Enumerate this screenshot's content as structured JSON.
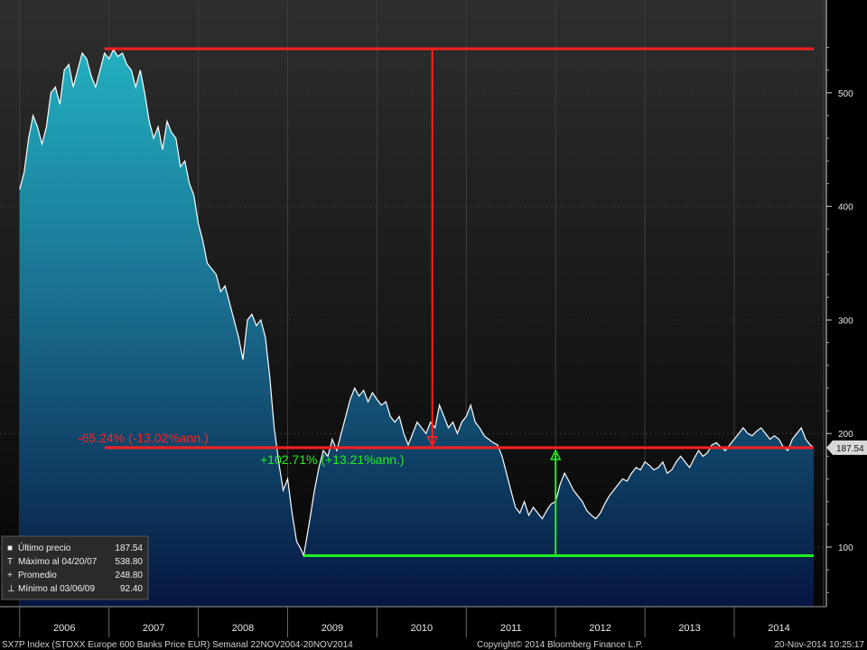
{
  "chart_data": {
    "type": "area",
    "ylim": [
      40,
      560
    ],
    "yticks": [
      100,
      200,
      300,
      400,
      500
    ],
    "year_labels": [
      "2006",
      "2007",
      "2008",
      "2009",
      "2010",
      "2011",
      "2012",
      "2013",
      "2014"
    ],
    "year_starts": [
      "2006",
      "2007",
      "2008",
      "2009",
      "2010",
      "2011",
      "2012",
      "2013",
      "2014",
      "2015"
    ],
    "last_value_label": "187.54",
    "series": [
      {
        "values_note": "weekly closes approximated",
        "points": [
          [
            "2006.00",
            415
          ],
          [
            "2006.05",
            430
          ],
          [
            "2006.10",
            460
          ],
          [
            "2006.15",
            480
          ],
          [
            "2006.20",
            470
          ],
          [
            "2006.25",
            455
          ],
          [
            "2006.30",
            470
          ],
          [
            "2006.35",
            500
          ],
          [
            "2006.40",
            505
          ],
          [
            "2006.45",
            490
          ],
          [
            "2006.50",
            520
          ],
          [
            "2006.55",
            525
          ],
          [
            "2006.60",
            505
          ],
          [
            "2006.65",
            520
          ],
          [
            "2006.70",
            535
          ],
          [
            "2006.75",
            530
          ],
          [
            "2006.80",
            515
          ],
          [
            "2006.85",
            505
          ],
          [
            "2006.90",
            520
          ],
          [
            "2006.95",
            535
          ],
          [
            "2007.00",
            530
          ],
          [
            "2007.05",
            538
          ],
          [
            "2007.10",
            532
          ],
          [
            "2007.15",
            535
          ],
          [
            "2007.20",
            525
          ],
          [
            "2007.25",
            520
          ],
          [
            "2007.30",
            505
          ],
          [
            "2007.35",
            520
          ],
          [
            "2007.40",
            500
          ],
          [
            "2007.45",
            475
          ],
          [
            "2007.50",
            460
          ],
          [
            "2007.55",
            470
          ],
          [
            "2007.60",
            450
          ],
          [
            "2007.65",
            475
          ],
          [
            "2007.70",
            465
          ],
          [
            "2007.75",
            460
          ],
          [
            "2007.80",
            435
          ],
          [
            "2007.85",
            440
          ],
          [
            "2007.90",
            420
          ],
          [
            "2007.95",
            410
          ],
          [
            "2008.00",
            385
          ],
          [
            "2008.05",
            370
          ],
          [
            "2008.10",
            350
          ],
          [
            "2008.15",
            345
          ],
          [
            "2008.20",
            340
          ],
          [
            "2008.25",
            325
          ],
          [
            "2008.30",
            330
          ],
          [
            "2008.35",
            315
          ],
          [
            "2008.40",
            300
          ],
          [
            "2008.45",
            285
          ],
          [
            "2008.50",
            265
          ],
          [
            "2008.55",
            300
          ],
          [
            "2008.60",
            305
          ],
          [
            "2008.65",
            295
          ],
          [
            "2008.70",
            300
          ],
          [
            "2008.75",
            285
          ],
          [
            "2008.80",
            250
          ],
          [
            "2008.85",
            205
          ],
          [
            "2008.90",
            175
          ],
          [
            "2008.95",
            150
          ],
          [
            "2009.00",
            160
          ],
          [
            "2009.05",
            130
          ],
          [
            "2009.10",
            105
          ],
          [
            "2009.15",
            98
          ],
          [
            "2009.18",
            92.4
          ],
          [
            "2009.25",
            125
          ],
          [
            "2009.30",
            150
          ],
          [
            "2009.35",
            170
          ],
          [
            "2009.40",
            185
          ],
          [
            "2009.45",
            180
          ],
          [
            "2009.50",
            195
          ],
          [
            "2009.55",
            185
          ],
          [
            "2009.60",
            200
          ],
          [
            "2009.65",
            215
          ],
          [
            "2009.70",
            230
          ],
          [
            "2009.75",
            240
          ],
          [
            "2009.80",
            233
          ],
          [
            "2009.85",
            238
          ],
          [
            "2009.90",
            228
          ],
          [
            "2009.95",
            236
          ],
          [
            "2010.00",
            230
          ],
          [
            "2010.05",
            225
          ],
          [
            "2010.10",
            228
          ],
          [
            "2010.15",
            215
          ],
          [
            "2010.20",
            210
          ],
          [
            "2010.25",
            215
          ],
          [
            "2010.30",
            200
          ],
          [
            "2010.35",
            190
          ],
          [
            "2010.40",
            200
          ],
          [
            "2010.45",
            210
          ],
          [
            "2010.50",
            205
          ],
          [
            "2010.55",
            200
          ],
          [
            "2010.60",
            210
          ],
          [
            "2010.65",
            205
          ],
          [
            "2010.70",
            225
          ],
          [
            "2010.75",
            215
          ],
          [
            "2010.80",
            205
          ],
          [
            "2010.85",
            210
          ],
          [
            "2010.90",
            200
          ],
          [
            "2010.95",
            210
          ],
          [
            "2011.00",
            215
          ],
          [
            "2011.05",
            225
          ],
          [
            "2011.10",
            210
          ],
          [
            "2011.15",
            205
          ],
          [
            "2011.20",
            198
          ],
          [
            "2011.25",
            195
          ],
          [
            "2011.30",
            192
          ],
          [
            "2011.35",
            190
          ],
          [
            "2011.40",
            180
          ],
          [
            "2011.45",
            165
          ],
          [
            "2011.50",
            150
          ],
          [
            "2011.55",
            135
          ],
          [
            "2011.60",
            130
          ],
          [
            "2011.65",
            140
          ],
          [
            "2011.70",
            128
          ],
          [
            "2011.75",
            135
          ],
          [
            "2011.80",
            130
          ],
          [
            "2011.85",
            125
          ],
          [
            "2011.90",
            132
          ],
          [
            "2011.95",
            138
          ],
          [
            "2012.00",
            140
          ],
          [
            "2012.05",
            155
          ],
          [
            "2012.10",
            165
          ],
          [
            "2012.15",
            158
          ],
          [
            "2012.20",
            150
          ],
          [
            "2012.25",
            145
          ],
          [
            "2012.30",
            140
          ],
          [
            "2012.35",
            132
          ],
          [
            "2012.40",
            128
          ],
          [
            "2012.45",
            125
          ],
          [
            "2012.50",
            130
          ],
          [
            "2012.55",
            138
          ],
          [
            "2012.60",
            145
          ],
          [
            "2012.65",
            150
          ],
          [
            "2012.70",
            155
          ],
          [
            "2012.75",
            160
          ],
          [
            "2012.80",
            158
          ],
          [
            "2012.85",
            165
          ],
          [
            "2012.90",
            170
          ],
          [
            "2012.95",
            168
          ],
          [
            "2013.00",
            175
          ],
          [
            "2013.05",
            172
          ],
          [
            "2013.10",
            168
          ],
          [
            "2013.15",
            170
          ],
          [
            "2013.20",
            175
          ],
          [
            "2013.25",
            165
          ],
          [
            "2013.30",
            168
          ],
          [
            "2013.35",
            175
          ],
          [
            "2013.40",
            180
          ],
          [
            "2013.45",
            175
          ],
          [
            "2013.50",
            170
          ],
          [
            "2013.55",
            178
          ],
          [
            "2013.60",
            185
          ],
          [
            "2013.65",
            180
          ],
          [
            "2013.70",
            183
          ],
          [
            "2013.75",
            190
          ],
          [
            "2013.80",
            192
          ],
          [
            "2013.85",
            188
          ],
          [
            "2013.90",
            185
          ],
          [
            "2013.95",
            190
          ],
          [
            "2014.00",
            195
          ],
          [
            "2014.05",
            200
          ],
          [
            "2014.10",
            205
          ],
          [
            "2014.15",
            200
          ],
          [
            "2014.20",
            198
          ],
          [
            "2014.25",
            202
          ],
          [
            "2014.30",
            205
          ],
          [
            "2014.35",
            200
          ],
          [
            "2014.40",
            195
          ],
          [
            "2014.45",
            198
          ],
          [
            "2014.50",
            195
          ],
          [
            "2014.55",
            188
          ],
          [
            "2014.60",
            185
          ],
          [
            "2014.65",
            195
          ],
          [
            "2014.70",
            200
          ],
          [
            "2014.75",
            205
          ],
          [
            "2014.80",
            195
          ],
          [
            "2014.85",
            190
          ],
          [
            "2014.89",
            187.54
          ]
        ]
      }
    ],
    "annotations": {
      "top_line": {
        "value": 538.8,
        "x_start": "2006.95",
        "x_end": "2015.00"
      },
      "mid_line": {
        "value": 187.54,
        "x_start": "2006.95",
        "x_end": "2015.00"
      },
      "bottom_line": {
        "value": 92.4,
        "x_start": "2009.18",
        "x_end": "2015.00"
      },
      "down_arrow_x": "2010.62",
      "up_arrow_x": "2012.00",
      "down_label": "-65.24% (-13.02%ann.)",
      "up_label": "+102.71% (+13.21%ann.)"
    }
  },
  "legend": {
    "items": [
      {
        "symbol": "square",
        "label": "Último precio",
        "value": "187.54"
      },
      {
        "symbol": "T",
        "label": "Máximo al 04/20/07",
        "value": "538.80"
      },
      {
        "symbol": "+",
        "label": "Promedio",
        "value": "248.80"
      },
      {
        "symbol": "⊥",
        "label": "Mínimo al 03/06/09",
        "value": "92.40"
      }
    ]
  },
  "footer": {
    "left": "SX7P Index  (STOXX Europe 600 Banks Price EUR)  Semanal 22NOV2004-20NOV2014",
    "center": "Copyright© 2014 Bloomberg Finance L.P.",
    "right": "20-Nov-2014 10:25:17"
  },
  "colors": {
    "area_top": "#1aa0b4",
    "area_bottom": "#0a1e46",
    "line": "#ffffff",
    "red": "#ff2020",
    "green": "#22ee22",
    "bg_top": "#2a2a2a",
    "bg_bottom": "#0a0a0a"
  }
}
